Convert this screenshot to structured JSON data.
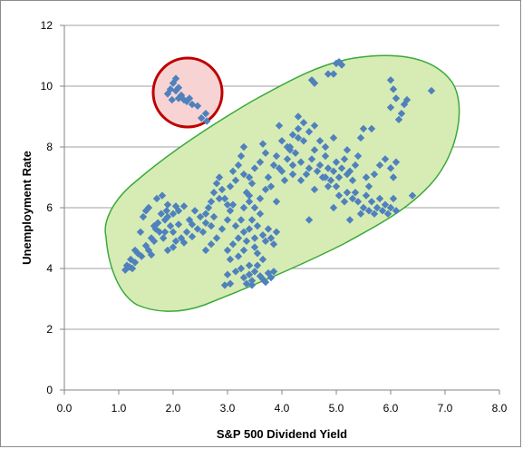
{
  "chart_data": {
    "type": "scatter",
    "xlabel": "S&P 500 Dividend Yield",
    "ylabel": "Unemployment Rate",
    "xlim": [
      0,
      8
    ],
    "ylim": [
      0,
      12
    ],
    "x_ticks": [
      "0.0",
      "1.0",
      "2.0",
      "3.0",
      "4.0",
      "5.0",
      "6.0",
      "7.0",
      "8.0"
    ],
    "y_ticks": [
      "0",
      "2",
      "4",
      "6",
      "8",
      "10",
      "12"
    ],
    "grid": "horizontal",
    "marker": "diamond",
    "colors": {
      "marker": "#4f81bd",
      "ellipse_fill": "#d7ecb4",
      "ellipse_stroke": "#3aa93a",
      "circle_stroke": "#c00000",
      "circle_fill": "#f8d3d3",
      "gridline": "#a0a0a0"
    },
    "points": [
      [
        1.12,
        3.95
      ],
      [
        1.15,
        4.1
      ],
      [
        1.2,
        4.05
      ],
      [
        1.22,
        4.3
      ],
      [
        1.3,
        4.2
      ],
      [
        1.35,
        4.5
      ],
      [
        1.42,
        4.4
      ],
      [
        1.5,
        4.75
      ],
      [
        1.55,
        4.6
      ],
      [
        1.6,
        5.0
      ],
      [
        1.65,
        4.9
      ],
      [
        1.68,
        5.3
      ],
      [
        1.72,
        5.5
      ],
      [
        1.75,
        5.2
      ],
      [
        1.78,
        5.8
      ],
      [
        1.82,
        5.0
      ],
      [
        1.85,
        5.6
      ],
      [
        1.88,
        5.9
      ],
      [
        1.9,
        6.1
      ],
      [
        1.95,
        5.4
      ],
      [
        2.0,
        5.2
      ],
      [
        2.05,
        4.9
      ],
      [
        2.1,
        5.45
      ],
      [
        2.15,
        5.0
      ],
      [
        2.2,
        4.85
      ],
      [
        2.25,
        5.2
      ],
      [
        2.3,
        5.6
      ],
      [
        2.35,
        5.45
      ],
      [
        2.4,
        5.9
      ],
      [
        2.45,
        5.3
      ],
      [
        1.5,
        5.9
      ],
      [
        1.55,
        6.0
      ],
      [
        1.45,
        5.7
      ],
      [
        1.4,
        5.2
      ],
      [
        1.7,
        6.3
      ],
      [
        1.8,
        6.4
      ],
      [
        1.65,
        5.4
      ],
      [
        1.9,
        5.7
      ],
      [
        2.0,
        5.8
      ],
      [
        2.05,
        6.05
      ],
      [
        2.2,
        6.05
      ],
      [
        2.35,
        5.05
      ],
      [
        2.0,
        4.7
      ],
      [
        1.9,
        4.6
      ],
      [
        1.6,
        4.45
      ],
      [
        1.3,
        4.6
      ],
      [
        1.25,
        4.0
      ],
      [
        1.85,
        5.2
      ],
      [
        2.1,
        5.9
      ],
      [
        2.5,
        5.7
      ],
      [
        2.55,
        5.2
      ],
      [
        2.6,
        5.5
      ],
      [
        2.65,
        6.0
      ],
      [
        2.7,
        6.2
      ],
      [
        2.75,
        6.5
      ],
      [
        2.8,
        6.8
      ],
      [
        2.85,
        7.0
      ],
      [
        2.9,
        6.6
      ],
      [
        2.95,
        6.3
      ],
      [
        3.0,
        6.1
      ],
      [
        3.05,
        6.7
      ],
      [
        3.1,
        7.2
      ],
      [
        3.15,
        6.9
      ],
      [
        3.2,
        7.4
      ],
      [
        3.25,
        7.7
      ],
      [
        3.3,
        7.1
      ],
      [
        3.35,
        6.5
      ],
      [
        3.4,
        7.0
      ],
      [
        3.45,
        6.8
      ],
      [
        3.5,
        7.3
      ],
      [
        2.6,
        5.8
      ],
      [
        2.75,
        5.7
      ],
      [
        2.85,
        6.3
      ],
      [
        3.0,
        5.6
      ],
      [
        3.05,
        5.9
      ],
      [
        3.15,
        5.4
      ],
      [
        3.2,
        5.0
      ],
      [
        3.25,
        5.6
      ],
      [
        3.3,
        5.2
      ],
      [
        3.35,
        4.9
      ],
      [
        3.0,
        4.6
      ],
      [
        3.05,
        4.3
      ],
      [
        3.1,
        4.8
      ],
      [
        3.2,
        4.4
      ],
      [
        3.15,
        3.9
      ],
      [
        3.25,
        4.0
      ],
      [
        3.3,
        3.7
      ],
      [
        3.35,
        3.5
      ],
      [
        3.4,
        3.8
      ],
      [
        3.45,
        3.6
      ],
      [
        3.5,
        3.9
      ],
      [
        3.55,
        4.1
      ],
      [
        3.6,
        3.75
      ],
      [
        3.65,
        3.65
      ],
      [
        3.7,
        3.55
      ],
      [
        3.75,
        3.85
      ],
      [
        3.8,
        3.7
      ],
      [
        2.95,
        3.45
      ],
      [
        3.05,
        3.5
      ],
      [
        3.0,
        3.8
      ],
      [
        3.4,
        5.3
      ],
      [
        3.45,
        5.6
      ],
      [
        3.5,
        5.0
      ],
      [
        3.55,
        5.4
      ],
      [
        3.6,
        5.8
      ],
      [
        3.65,
        5.1
      ],
      [
        3.7,
        4.9
      ],
      [
        3.75,
        5.3
      ],
      [
        3.8,
        5.0
      ],
      [
        3.85,
        4.8
      ],
      [
        3.9,
        5.2
      ],
      [
        3.3,
        6.0
      ],
      [
        3.4,
        6.2
      ],
      [
        3.5,
        6.0
      ],
      [
        3.6,
        6.3
      ],
      [
        3.7,
        6.6
      ],
      [
        3.75,
        7.0
      ],
      [
        3.8,
        6.7
      ],
      [
        3.85,
        7.4
      ],
      [
        3.9,
        7.7
      ],
      [
        3.95,
        7.3
      ],
      [
        3.6,
        7.5
      ],
      [
        3.7,
        7.8
      ],
      [
        3.3,
        8.0
      ],
      [
        3.65,
        8.1
      ],
      [
        3.4,
        6.4
      ],
      [
        2.9,
        5.3
      ],
      [
        2.8,
        5.0
      ],
      [
        2.7,
        4.8
      ],
      [
        2.6,
        4.6
      ],
      [
        3.55,
        4.5
      ],
      [
        3.65,
        4.3
      ],
      [
        3.3,
        4.6
      ],
      [
        3.4,
        4.1
      ],
      [
        3.45,
        3.45
      ],
      [
        3.85,
        3.9
      ],
      [
        3.5,
        4.7
      ],
      [
        2.7,
        5.4
      ],
      [
        3.1,
        6.1
      ],
      [
        3.9,
        6.2
      ],
      [
        4.0,
        7.2
      ],
      [
        4.05,
        6.9
      ],
      [
        4.1,
        7.6
      ],
      [
        4.15,
        8.0
      ],
      [
        4.2,
        7.4
      ],
      [
        4.25,
        7.8
      ],
      [
        4.3,
        8.3
      ],
      [
        4.35,
        7.5
      ],
      [
        4.4,
        8.2
      ],
      [
        4.45,
        7.1
      ],
      [
        4.5,
        7.3
      ],
      [
        4.55,
        7.6
      ],
      [
        4.6,
        7.9
      ],
      [
        4.65,
        7.2
      ],
      [
        4.7,
        7.4
      ],
      [
        4.75,
        7.0
      ],
      [
        4.8,
        7.7
      ],
      [
        4.85,
        7.3
      ],
      [
        4.9,
        6.9
      ],
      [
        4.95,
        7.2
      ],
      [
        5.0,
        7.5
      ],
      [
        5.05,
        7.0
      ],
      [
        5.1,
        7.3
      ],
      [
        5.15,
        7.6
      ],
      [
        5.2,
        7.1
      ],
      [
        4.3,
        8.6
      ],
      [
        4.4,
        8.8
      ],
      [
        4.5,
        8.5
      ],
      [
        4.6,
        8.7
      ],
      [
        4.7,
        8.2
      ],
      [
        4.2,
        8.4
      ],
      [
        4.1,
        8.0
      ],
      [
        4.55,
        10.2
      ],
      [
        4.6,
        10.1
      ],
      [
        4.85,
        10.4
      ],
      [
        4.95,
        10.4
      ],
      [
        5.0,
        10.75
      ],
      [
        5.05,
        10.8
      ],
      [
        5.1,
        10.7
      ],
      [
        4.3,
        9.0
      ],
      [
        4.8,
        8.0
      ],
      [
        4.95,
        8.3
      ],
      [
        5.2,
        7.9
      ],
      [
        5.3,
        6.9
      ],
      [
        5.35,
        6.5
      ],
      [
        5.4,
        6.2
      ],
      [
        5.5,
        6.0
      ],
      [
        5.55,
        6.4
      ],
      [
        5.6,
        5.9
      ],
      [
        5.65,
        6.2
      ],
      [
        5.7,
        5.8
      ],
      [
        5.75,
        6.0
      ],
      [
        5.8,
        6.3
      ],
      [
        5.85,
        5.9
      ],
      [
        5.9,
        6.1
      ],
      [
        5.95,
        5.8
      ],
      [
        6.0,
        6.0
      ],
      [
        6.05,
        6.3
      ],
      [
        6.1,
        5.9
      ],
      [
        5.45,
        5.8
      ],
      [
        5.3,
        6.3
      ],
      [
        5.25,
        5.6
      ],
      [
        5.2,
        6.5
      ],
      [
        5.6,
        6.7
      ],
      [
        5.7,
        7.1
      ],
      [
        5.8,
        7.4
      ],
      [
        5.9,
        7.6
      ],
      [
        6.0,
        7.3
      ],
      [
        6.05,
        7.0
      ],
      [
        6.1,
        7.5
      ],
      [
        5.5,
        8.6
      ],
      [
        5.65,
        8.6
      ],
      [
        5.45,
        8.3
      ],
      [
        6.0,
        9.3
      ],
      [
        6.1,
        9.6
      ],
      [
        6.15,
        8.9
      ],
      [
        6.2,
        9.1
      ],
      [
        6.25,
        9.4
      ],
      [
        6.3,
        9.55
      ],
      [
        6.0,
        10.2
      ],
      [
        6.05,
        9.9
      ],
      [
        6.75,
        9.85
      ],
      [
        6.4,
        6.4
      ],
      [
        5.0,
        6.7
      ],
      [
        5.05,
        6.4
      ],
      [
        5.15,
        6.2
      ],
      [
        4.95,
        6.0
      ],
      [
        4.8,
        7.0
      ],
      [
        4.85,
        6.7
      ],
      [
        4.6,
        6.6
      ],
      [
        4.5,
        5.6
      ],
      [
        4.2,
        7.1
      ],
      [
        4.15,
        7.9
      ],
      [
        4.0,
        8.2
      ],
      [
        3.95,
        8.7
      ],
      [
        4.35,
        6.9
      ],
      [
        5.35,
        7.4
      ],
      [
        5.4,
        7.7
      ],
      [
        5.55,
        7.0
      ],
      [
        5.25,
        7.2
      ],
      [
        1.9,
        9.75
      ],
      [
        1.95,
        9.9
      ],
      [
        2.0,
        10.1
      ],
      [
        2.05,
        9.85
      ],
      [
        2.1,
        9.6
      ],
      [
        2.15,
        9.7
      ],
      [
        2.2,
        9.55
      ],
      [
        2.25,
        9.5
      ],
      [
        2.3,
        9.6
      ],
      [
        2.35,
        9.4
      ],
      [
        2.45,
        9.35
      ],
      [
        2.6,
        9.1
      ],
      [
        1.98,
        9.55
      ],
      [
        2.05,
        10.25
      ],
      [
        2.1,
        9.95
      ],
      [
        2.52,
        8.95
      ],
      [
        2.62,
        8.85
      ]
    ]
  }
}
